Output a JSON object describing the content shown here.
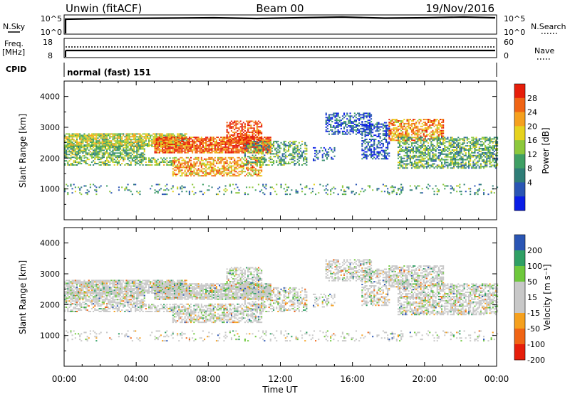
{
  "header": {
    "station": "Unwin (fitACF)",
    "beam": "Beam 00",
    "date": "19/Nov/2016"
  },
  "scalars": {
    "nsky_label": "N.Sky",
    "nsky_ticks": [
      "10^5",
      "10^0"
    ],
    "nsearch_label": "N.Search",
    "nsearch_ticks": [
      "10^5",
      "10^0"
    ],
    "freq_label_1": "Freq.",
    "freq_label_2": "[MHz]",
    "freq_ticks": [
      "18",
      "8"
    ],
    "nave_label": "Nave",
    "nave_ticks": [
      "60",
      "0"
    ],
    "cpid_label": "CPID",
    "cpid_value": "normal (fast) 151"
  },
  "colors": {
    "power": [
      "#0a1ee6",
      "#2a55b4",
      "#2f7d77",
      "#3f9f64",
      "#8cc83c",
      "#e6d21e",
      "#f5a01e",
      "#f06414",
      "#e61e0a"
    ],
    "velocity": [
      "#e61e0a",
      "#f06414",
      "#f5a01e",
      "#c8c8c8",
      "#c8c8c8",
      "#6ec83c",
      "#2f9f64",
      "#2a55b4"
    ]
  },
  "chart_data": [
    {
      "type": "heatmap",
      "panel": "power",
      "ylabel": "Slant Range [km]",
      "xlabel": "",
      "x_ticks": [
        "00:00",
        "04:00",
        "08:00",
        "12:00",
        "16:00",
        "20:00",
        "00:00"
      ],
      "x_hours": [
        0,
        4,
        8,
        12,
        16,
        20,
        24
      ],
      "xlim": [
        0,
        24
      ],
      "ylim": [
        0,
        4500
      ],
      "y_ticks": [
        1000,
        2000,
        3000,
        4000
      ],
      "colorbar_label": "Power [dB]",
      "colorbar_ticks": [
        "28",
        "24",
        "20",
        "16",
        "12",
        "8",
        "4"
      ],
      "colorbar_range": [
        0,
        32
      ]
    },
    {
      "type": "heatmap",
      "panel": "velocity",
      "ylabel": "Slant Range [km]",
      "xlabel": "Time UT",
      "x_ticks": [
        "00:00",
        "04:00",
        "08:00",
        "12:00",
        "16:00",
        "20:00",
        "00:00"
      ],
      "x_hours": [
        0,
        4,
        8,
        12,
        16,
        20,
        24
      ],
      "xlim": [
        0,
        24
      ],
      "ylim": [
        0,
        4500
      ],
      "y_ticks": [
        1000,
        2000,
        3000,
        4000
      ],
      "colorbar_label": "Velocity [m s⁻¹]",
      "colorbar_ticks": [
        "200",
        "100",
        "50",
        "15",
        "-15",
        "-50",
        "-100",
        "-200"
      ],
      "colorbar_range": [
        -250,
        250
      ]
    }
  ]
}
